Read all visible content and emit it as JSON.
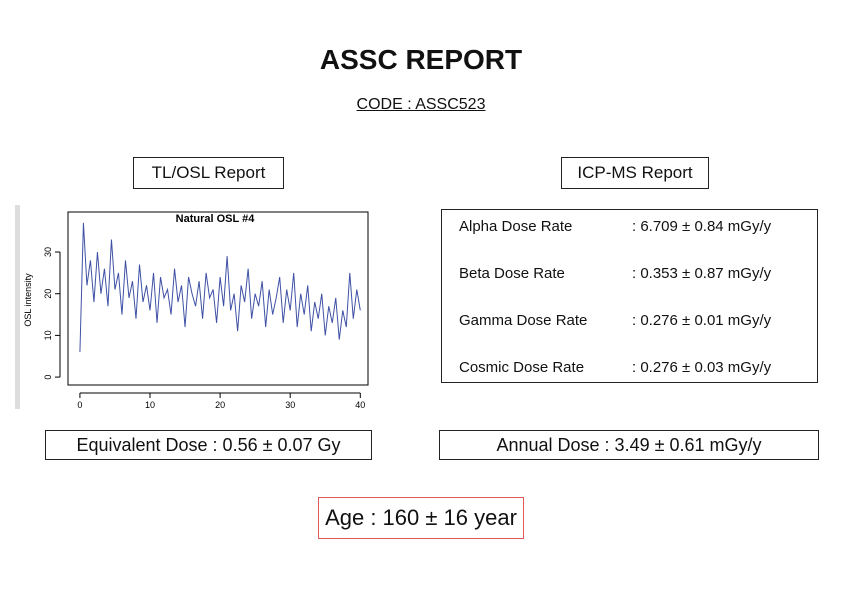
{
  "header": {
    "title": "ASSC REPORT",
    "code": "CODE : ASSC523"
  },
  "tl_osl": {
    "title": "TL/OSL Report",
    "equivalent_dose": "Equivalent Dose : 0.56 ± 0.07 Gy"
  },
  "icp_ms": {
    "title": "ICP-MS Report",
    "rows": [
      {
        "label": "Alpha Dose Rate",
        "value": ": 6.709 ± 0.84 mGy/y"
      },
      {
        "label": "Beta Dose Rate",
        "value": ": 0.353 ± 0.87 mGy/y"
      },
      {
        "label": "Gamma Dose Rate",
        "value": ": 0.276 ± 0.01 mGy/y"
      },
      {
        "label": "Cosmic Dose Rate",
        "value": ": 0.276 ± 0.03 mGy/y"
      }
    ],
    "annual_dose": "Annual Dose : 3.49 ± 0.61 mGy/y"
  },
  "age": "Age : 160 ± 16 year",
  "chart_data": {
    "type": "line",
    "title": "Natural OSL #4",
    "y_label": "OSL intensity",
    "color": "#3f51a5",
    "x": [
      0,
      0.5,
      1,
      1.5,
      2,
      2.5,
      3,
      3.5,
      4,
      4.5,
      5,
      5.5,
      6,
      6.5,
      7,
      7.5,
      8,
      8.5,
      9,
      9.5,
      10,
      10.5,
      11,
      11.5,
      12,
      12.5,
      13,
      13.5,
      14,
      14.5,
      15,
      15.5,
      16,
      16.5,
      17,
      17.5,
      18,
      18.5,
      19,
      19.5,
      20,
      20.5,
      21,
      21.5,
      22,
      22.5,
      23,
      23.5,
      24,
      24.5,
      25,
      25.5,
      26,
      26.5,
      27,
      27.5,
      28,
      28.5,
      29,
      29.5,
      30,
      30.5,
      31,
      31.5,
      32,
      32.5,
      33,
      33.5,
      34,
      34.5,
      35,
      35.5,
      36,
      36.5,
      37,
      37.5,
      38,
      38.5,
      39,
      39.5,
      40
    ],
    "values": [
      6,
      37,
      22,
      28,
      18,
      30,
      20,
      26,
      17,
      33,
      21,
      25,
      15,
      28,
      19,
      23,
      14,
      27,
      18,
      22,
      16,
      25,
      13,
      24,
      19,
      21,
      15,
      26,
      18,
      22,
      12,
      24,
      20,
      17,
      23,
      14,
      25,
      19,
      21,
      13,
      24,
      17,
      29,
      16,
      20,
      11,
      22,
      18,
      26,
      14,
      20,
      17,
      23,
      12,
      21,
      15,
      19,
      24,
      13,
      21,
      16,
      25,
      12,
      20,
      15,
      22,
      11,
      18,
      14,
      20,
      10,
      17,
      13,
      19,
      9,
      16,
      12,
      25,
      14,
      21,
      16
    ],
    "xlim": [
      -1.7,
      41.1
    ],
    "ylim": [
      -1.9,
      39.6
    ],
    "xticks": [
      0,
      10,
      20,
      30,
      40
    ],
    "yticks": [
      0,
      10,
      20,
      30
    ]
  }
}
